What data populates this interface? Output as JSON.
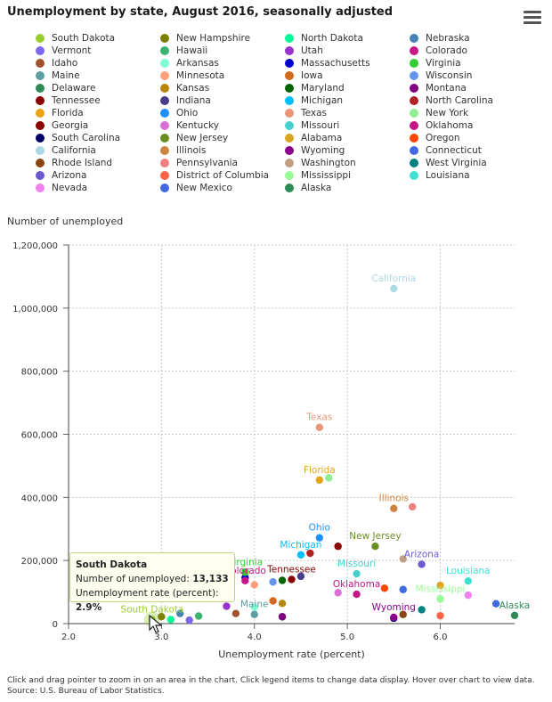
{
  "title": "Unemployment by state, August 2016, seasonally adjusted",
  "menu_icon": "hamburger-menu-icon",
  "footer_note": "Click and drag pointer to zoom in on an area in the chart. Click legend items to change data display. Hover over chart to view data.",
  "footer_source": "Source: U.S. Bureau of Labor Statistics.",
  "tooltip": {
    "state": "South Dakota",
    "count_label": "Number of unemployed:",
    "count_value": "13,133",
    "rate_label": "Unemployment rate (percent):",
    "rate_value": "2.9%"
  },
  "chart_data": {
    "type": "scatter",
    "title": "Unemployment by state, August 2016, seasonally adjusted",
    "xlabel": "Unemployment rate (percent)",
    "ylabel": "Number of unemployed",
    "xlim": [
      2.0,
      6.8
    ],
    "ylim": [
      0,
      1200000
    ],
    "x_ticks": [
      "2.0",
      "3.0",
      "4.0",
      "5.0",
      "6.0"
    ],
    "y_ticks": [
      "0",
      "200,000",
      "400,000",
      "600,000",
      "800,000",
      "1,000,000",
      "1,200,000"
    ],
    "grid": true,
    "legend_position": "top",
    "series": [
      {
        "name": "South Dakota",
        "color": "#9acd32",
        "x": 2.9,
        "y": 13133,
        "label": "South Dakota"
      },
      {
        "name": "Vermont",
        "color": "#7b68ee",
        "x": 3.3,
        "y": 11000
      },
      {
        "name": "Idaho",
        "color": "#a0522d",
        "x": 3.8,
        "y": 32000
      },
      {
        "name": "Maine",
        "color": "#5f9ea0",
        "x": 4.0,
        "y": 29000,
        "label": "Maine"
      },
      {
        "name": "Delaware",
        "color": "#2e8b57",
        "x": 4.3,
        "y": 21000
      },
      {
        "name": "Tennessee",
        "color": "#8b0000",
        "x": 4.4,
        "y": 140000,
        "label": "Tennessee"
      },
      {
        "name": "Florida",
        "color": "#e8a317",
        "x": 4.7,
        "y": 455000,
        "label": "Florida"
      },
      {
        "name": "Georgia",
        "color": "#8b0000",
        "x": 4.9,
        "y": 245000
      },
      {
        "name": "South Carolina",
        "color": "#000066",
        "x": 5.5,
        "y": 17000
      },
      {
        "name": "California",
        "color": "#add8e6",
        "x": 5.5,
        "y": 1062000,
        "label": "California"
      },
      {
        "name": "Rhode Island",
        "color": "#8b4513",
        "x": 5.6,
        "y": 29000
      },
      {
        "name": "Arizona",
        "color": "#6a5acd",
        "x": 5.8,
        "y": 188000,
        "label": "Arizona"
      },
      {
        "name": "Nevada",
        "color": "#ee82ee",
        "x": 6.3,
        "y": 90000
      },
      {
        "name": "New Hampshire",
        "color": "#808000",
        "x": 3.0,
        "y": 22000
      },
      {
        "name": "Hawaii",
        "color": "#3cb371",
        "x": 3.4,
        "y": 24000
      },
      {
        "name": "Arkansas",
        "color": "#7fffd4",
        "x": 4.0,
        "y": 52000
      },
      {
        "name": "Minnesota",
        "color": "#ffa07a",
        "x": 4.0,
        "y": 123000
      },
      {
        "name": "Kansas",
        "color": "#b8860b",
        "x": 4.3,
        "y": 64000
      },
      {
        "name": "Indiana",
        "color": "#483d8b",
        "x": 4.5,
        "y": 150000
      },
      {
        "name": "Ohio",
        "color": "#1e90ff",
        "x": 4.7,
        "y": 272000,
        "label": "Ohio"
      },
      {
        "name": "Kentucky",
        "color": "#da70d6",
        "x": 4.9,
        "y": 98000
      },
      {
        "name": "New Jersey",
        "color": "#6b8e23",
        "x": 5.3,
        "y": 245000,
        "label": "New Jersey"
      },
      {
        "name": "Illinois",
        "color": "#cd853f",
        "x": 5.5,
        "y": 365000,
        "label": "Illinois"
      },
      {
        "name": "Pennsylvania",
        "color": "#f08080",
        "x": 5.7,
        "y": 370000
      },
      {
        "name": "District of Columbia",
        "color": "#ff6347",
        "x": 6.0,
        "y": 25000
      },
      {
        "name": "New Mexico",
        "color": "#4169e1",
        "x": 6.6,
        "y": 63000
      },
      {
        "name": "North Dakota",
        "color": "#00fa9a",
        "x": 3.1,
        "y": 13000
      },
      {
        "name": "Utah",
        "color": "#9932cc",
        "x": 3.7,
        "y": 55000
      },
      {
        "name": "Massachusetts",
        "color": "#0000cd",
        "x": 3.9,
        "y": 146000
      },
      {
        "name": "Iowa",
        "color": "#d2691e",
        "x": 4.2,
        "y": 72000
      },
      {
        "name": "Maryland",
        "color": "#006400",
        "x": 4.3,
        "y": 137000
      },
      {
        "name": "Michigan",
        "color": "#00bfff",
        "x": 4.5,
        "y": 218000,
        "label": "Michigan"
      },
      {
        "name": "Texas",
        "color": "#e9967a",
        "x": 4.7,
        "y": 622000,
        "label": "Texas"
      },
      {
        "name": "Missouri",
        "color": "#48d1cc",
        "x": 5.1,
        "y": 158000,
        "label": "Missouri"
      },
      {
        "name": "Alabama",
        "color": "#daa520",
        "x": 6.0,
        "y": 121000
      },
      {
        "name": "Wyoming",
        "color": "#8b008b",
        "x": 5.5,
        "y": 20000,
        "label": "Wyoming"
      },
      {
        "name": "Washington",
        "color": "#c0a080",
        "x": 5.6,
        "y": 205000
      },
      {
        "name": "Mississippi",
        "color": "#98fb98",
        "x": 6.0,
        "y": 78000,
        "label": "Mississippi"
      },
      {
        "name": "Alaska",
        "color": "#2e8b57",
        "x": 6.8,
        "y": 26000,
        "label": "Alaska"
      },
      {
        "name": "Nebraska",
        "color": "#4682b4",
        "x": 3.2,
        "y": 32000
      },
      {
        "name": "Colorado",
        "color": "#c71585",
        "x": 3.9,
        "y": 136000,
        "label": "Colorado"
      },
      {
        "name": "Virginia",
        "color": "#32cd32",
        "x": 3.9,
        "y": 163000,
        "label": "Virginia"
      },
      {
        "name": "Wisconsin",
        "color": "#6495ed",
        "x": 4.2,
        "y": 132000
      },
      {
        "name": "Montana",
        "color": "#800080",
        "x": 4.3,
        "y": 22000
      },
      {
        "name": "North Carolina",
        "color": "#b22222",
        "x": 4.6,
        "y": 223000
      },
      {
        "name": "New York",
        "color": "#90ee90",
        "x": 4.8,
        "y": 462000
      },
      {
        "name": "Oklahoma",
        "color": "#c71585",
        "x": 5.1,
        "y": 93000,
        "label": "Oklahoma"
      },
      {
        "name": "Oregon",
        "color": "#ff4500",
        "x": 5.4,
        "y": 112000
      },
      {
        "name": "Connecticut",
        "color": "#4169e1",
        "x": 5.6,
        "y": 108000
      },
      {
        "name": "West Virginia",
        "color": "#008080",
        "x": 5.8,
        "y": 44000
      },
      {
        "name": "Louisiana",
        "color": "#40e0d0",
        "x": 6.3,
        "y": 135000,
        "label": "Louisiana"
      }
    ]
  }
}
